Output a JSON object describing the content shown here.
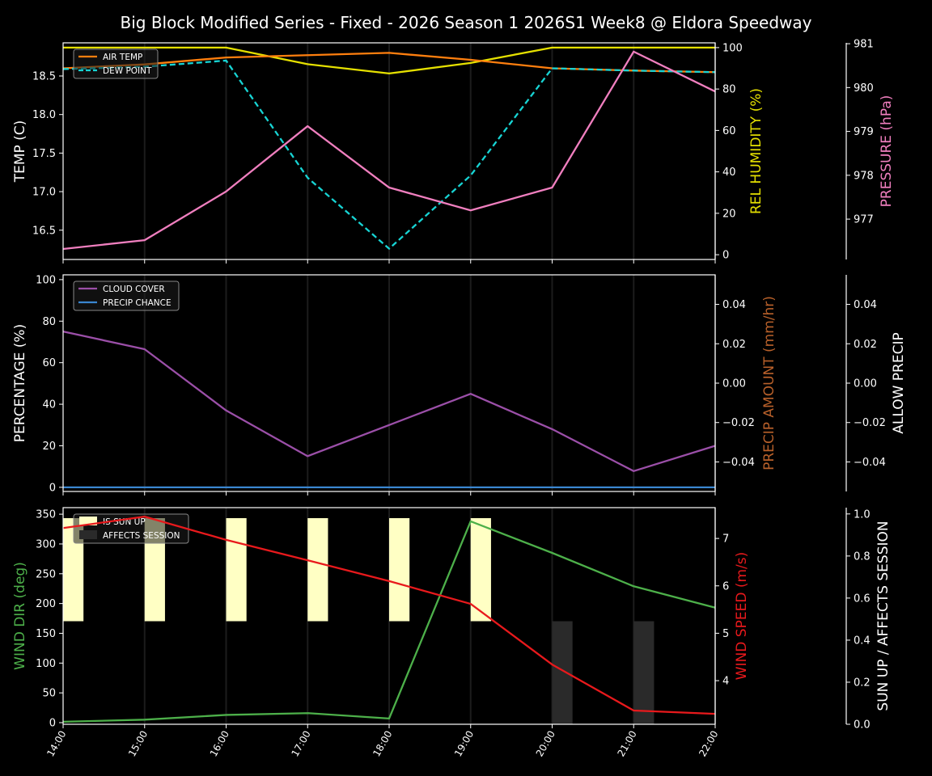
{
  "title": "Big Block Modified Series - Fixed - 2026 Season 1 2026S1 Week8 @ Eldora Speedway",
  "colors": {
    "background": "#000000",
    "air_temp": "#ff7f0e",
    "dew_point": "#17d4d4",
    "humidity": "#e5e000",
    "pressure": "#f07fbf",
    "cloud_cover": "#9b4fa8",
    "precip_chance": "#3a86d0",
    "precip_amount_label": "#b8602a",
    "wind_dir": "#4db04a",
    "wind_speed": "#e8191c",
    "sun_up": "#ffffc4",
    "affects_session": "#2a2a2a"
  },
  "chart_data": [
    {
      "type": "line",
      "x": [
        "14:00",
        "15:00",
        "16:00",
        "17:00",
        "18:00",
        "19:00",
        "20:00",
        "21:00",
        "22:00"
      ],
      "ylabel": "TEMP (C)",
      "ylim": [
        16.12,
        18.93
      ],
      "yticks": [
        "16.5",
        "17.0",
        "17.5",
        "18.0",
        "18.5"
      ],
      "legend": "top-left",
      "series": [
        {
          "name": "AIR TEMP",
          "axis": "temp",
          "values": [
            18.6,
            18.65,
            18.74,
            18.77,
            18.8,
            18.71,
            18.6,
            18.57,
            18.55
          ]
        },
        {
          "name": "DEW POINT",
          "axis": "temp",
          "style": "dashed",
          "values": [
            18.59,
            18.62,
            18.7,
            17.18,
            16.26,
            17.21,
            18.6,
            18.57,
            18.55
          ]
        },
        {
          "axis": "humidity",
          "values": [
            100,
            100,
            100,
            92,
            87.5,
            92.6,
            100,
            100,
            100
          ]
        },
        {
          "axis": "pressure",
          "values": [
            976.32,
            976.52,
            977.63,
            979.12,
            977.72,
            977.2,
            977.72,
            980.82,
            979.91
          ]
        }
      ],
      "right_axes": [
        {
          "key": "humidity",
          "label": "REL HUMIDITY (%)",
          "ylim": [
            -2.3,
            102.3
          ],
          "yticks": [
            "0",
            "20",
            "40",
            "60",
            "80",
            "100"
          ]
        },
        {
          "key": "pressure",
          "label": "PRESSURE (hPa)",
          "ylim": [
            976.08,
            981.02
          ],
          "yticks": [
            "977",
            "978",
            "979",
            "980",
            "981"
          ]
        }
      ]
    },
    {
      "type": "line",
      "x": [
        "14:00",
        "15:00",
        "16:00",
        "17:00",
        "18:00",
        "19:00",
        "20:00",
        "21:00",
        "22:00"
      ],
      "ylabel": "PERCENTAGE (%)",
      "ylim": [
        -2.0,
        102.3
      ],
      "yticks": [
        "0",
        "20",
        "40",
        "60",
        "80",
        "100"
      ],
      "legend": "top-left",
      "series": [
        {
          "name": "CLOUD COVER",
          "values": [
            75,
            66.5,
            37,
            15,
            30,
            45,
            28,
            7.8,
            20
          ]
        },
        {
          "name": "PRECIP CHANCE",
          "values": [
            0,
            0,
            0,
            0,
            0,
            0,
            0,
            0,
            0
          ]
        }
      ],
      "right_axes": [
        {
          "key": "precip_amount",
          "label": "PRECIP AMOUNT (mm/hr)",
          "ylim": [
            -0.055,
            0.055
          ],
          "yticks": [
            "−0.04",
            "−0.02",
            "0.00",
            "0.02",
            "0.04"
          ]
        },
        {
          "key": "allow_precip",
          "label": "ALLOW PRECIP",
          "ylim": [
            -0.055,
            0.055
          ],
          "yticks": [
            "−0.04",
            "−0.02",
            "0.00",
            "0.02",
            "0.04"
          ]
        }
      ]
    },
    {
      "type": "line",
      "x": [
        "14:00",
        "15:00",
        "16:00",
        "17:00",
        "18:00",
        "19:00",
        "20:00",
        "21:00",
        "22:00"
      ],
      "ylabel": "WIND DIR (deg)",
      "ylim": [
        -2.7,
        361
      ],
      "yticks": [
        "0",
        "50",
        "100",
        "150",
        "200",
        "250",
        "300",
        "350"
      ],
      "legend": "top-left",
      "series": [
        {
          "axis": "wind_dir",
          "values": [
            1.5,
            5,
            13,
            16,
            7,
            338,
            285,
            229,
            193
          ]
        },
        {
          "axis": "wind_speed",
          "values": [
            7.22,
            7.46,
            6.97,
            6.54,
            6.1,
            5.62,
            4.34,
            3.37,
            3.3
          ]
        }
      ],
      "bars": [
        {
          "name": "IS SUN UP",
          "values": [
            1,
            1,
            1,
            1,
            1,
            1,
            0,
            0,
            0
          ]
        },
        {
          "name": "AFFECTS SESSION",
          "values": [
            0,
            0,
            0,
            0,
            0,
            0,
            1,
            1,
            0
          ]
        }
      ],
      "right_axes": [
        {
          "key": "wind_speed",
          "label": "WIND SPEED (m/s)",
          "ylim": [
            3.08,
            7.65
          ],
          "yticks": [
            "4",
            "5",
            "6",
            "7"
          ]
        },
        {
          "key": "sun",
          "label": "SUN UP / AFFECTS SESSION",
          "ylim": [
            0,
            1.03
          ],
          "yticks": [
            "0.0",
            "0.2",
            "0.4",
            "0.6",
            "0.8",
            "1.0"
          ]
        }
      ]
    }
  ]
}
